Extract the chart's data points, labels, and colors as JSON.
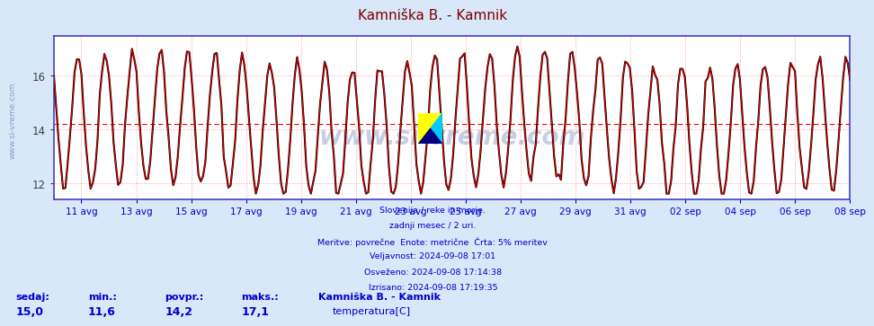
{
  "title": "Kamniška B. - Kamnik",
  "title_color": "#800000",
  "bg_color": "#d8e8f8",
  "plot_bg_color": "#ffffff",
  "border_color": "#4040c0",
  "grid_color": "#ff8888",
  "line_color": "#cc0000",
  "line_shadow_color": "#000000",
  "avg_line_color": "#ff0000",
  "avg_value": 14.2,
  "ymin": 11.4,
  "ymax": 17.5,
  "yticks": [
    12,
    14,
    16
  ],
  "ylabel_color": "#404040",
  "xlabel_color": "#0000cc",
  "watermark": "www.si-vreme.com",
  "watermark_color": "#4060a0",
  "watermark_alpha": 0.3,
  "x_tick_labels": [
    "11 avg",
    "13 avg",
    "15 avg",
    "17 avg",
    "19 avg",
    "21 avg",
    "23 avg",
    "25 avg",
    "27 avg",
    "29 avg",
    "31 avg",
    "02 sep",
    "04 sep",
    "06 sep",
    "08 sep"
  ],
  "x_tick_positions": [
    2,
    6,
    10,
    14,
    18,
    22,
    26,
    30,
    34,
    38,
    42,
    46,
    50,
    54,
    58
  ],
  "caption_lines": [
    "Slovenija / reke in morje.",
    "zadnji mesec / 2 uri.",
    "Meritve: povrečne  Enote: metrične  Črta: 5% meritev",
    "Veljavnost: 2024-09-08 17:01",
    "Osveženo: 2024-09-08 17:14:38",
    "Izrisano: 2024-09-08 17:19:35"
  ],
  "caption_color": "#0000cc",
  "footer_labels": [
    "sedaj:",
    "min.:",
    "povpr.:",
    "maks.:"
  ],
  "footer_values": [
    "15,0",
    "11,6",
    "14,2",
    "17,1"
  ],
  "footer_series_name": "Kamniška B. - Kamnik",
  "footer_series_label": "temperatura[C]",
  "footer_series_color": "#cc0000",
  "footer_color": "#0000cc"
}
